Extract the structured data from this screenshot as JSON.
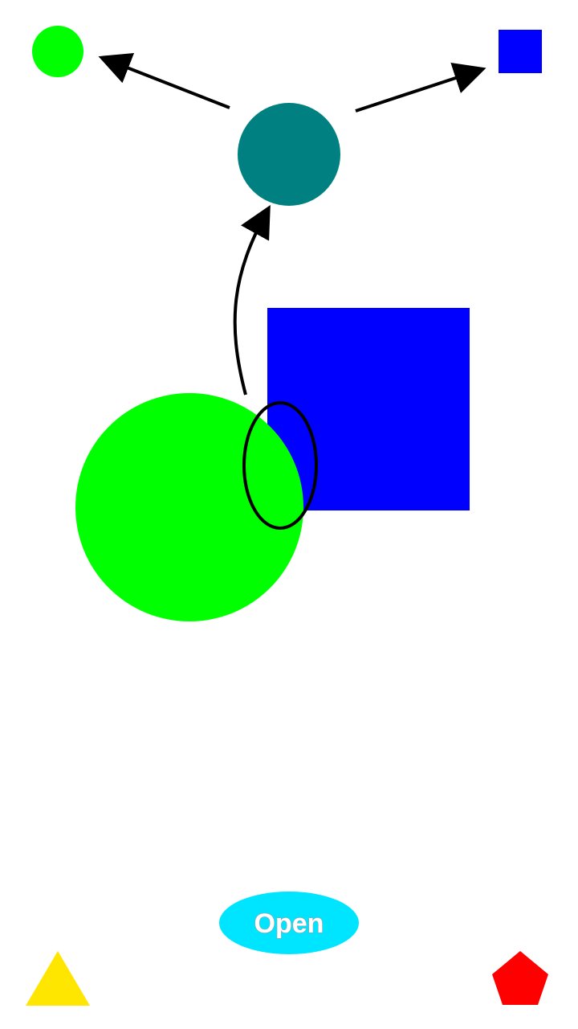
{
  "colors": {
    "background": "#ffffff",
    "green": "#00ff00",
    "teal": "#008080",
    "blue": "#0000ff",
    "cyan": "#00e5ff",
    "yellow": "#ffe600",
    "red": "#ff0000",
    "arrow": "#000000"
  },
  "button": {
    "label": "Open"
  }
}
